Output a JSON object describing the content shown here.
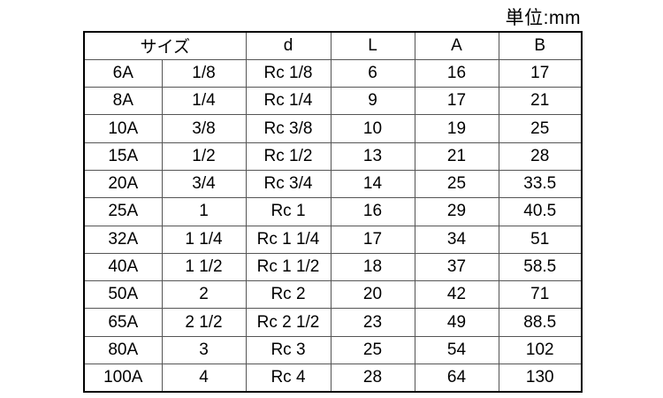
{
  "unit_label": "単位:mm",
  "table": {
    "headers": [
      "サイズ",
      "d",
      "L",
      "A",
      "B"
    ],
    "column_note": "first header spans the two size columns",
    "rows": [
      [
        "6A",
        "1/8",
        "Rc 1/8",
        "6",
        "16",
        "17"
      ],
      [
        "8A",
        "1/4",
        "Rc 1/4",
        "9",
        "17",
        "21"
      ],
      [
        "10A",
        "3/8",
        "Rc 3/8",
        "10",
        "19",
        "25"
      ],
      [
        "15A",
        "1/2",
        "Rc 1/2",
        "13",
        "21",
        "28"
      ],
      [
        "20A",
        "3/4",
        "Rc 3/4",
        "14",
        "25",
        "33.5"
      ],
      [
        "25A",
        "1",
        "Rc 1",
        "16",
        "29",
        "40.5"
      ],
      [
        "32A",
        "1 1/4",
        "Rc 1 1/4",
        "17",
        "34",
        "51"
      ],
      [
        "40A",
        "1 1/2",
        "Rc 1 1/2",
        "18",
        "37",
        "58.5"
      ],
      [
        "50A",
        "2",
        "Rc 2",
        "20",
        "42",
        "71"
      ],
      [
        "65A",
        "2 1/2",
        "Rc 2 1/2",
        "23",
        "49",
        "88.5"
      ],
      [
        "80A",
        "3",
        "Rc 3",
        "25",
        "54",
        "102"
      ],
      [
        "100A",
        "4",
        "Rc 4",
        "28",
        "64",
        "130"
      ]
    ]
  }
}
